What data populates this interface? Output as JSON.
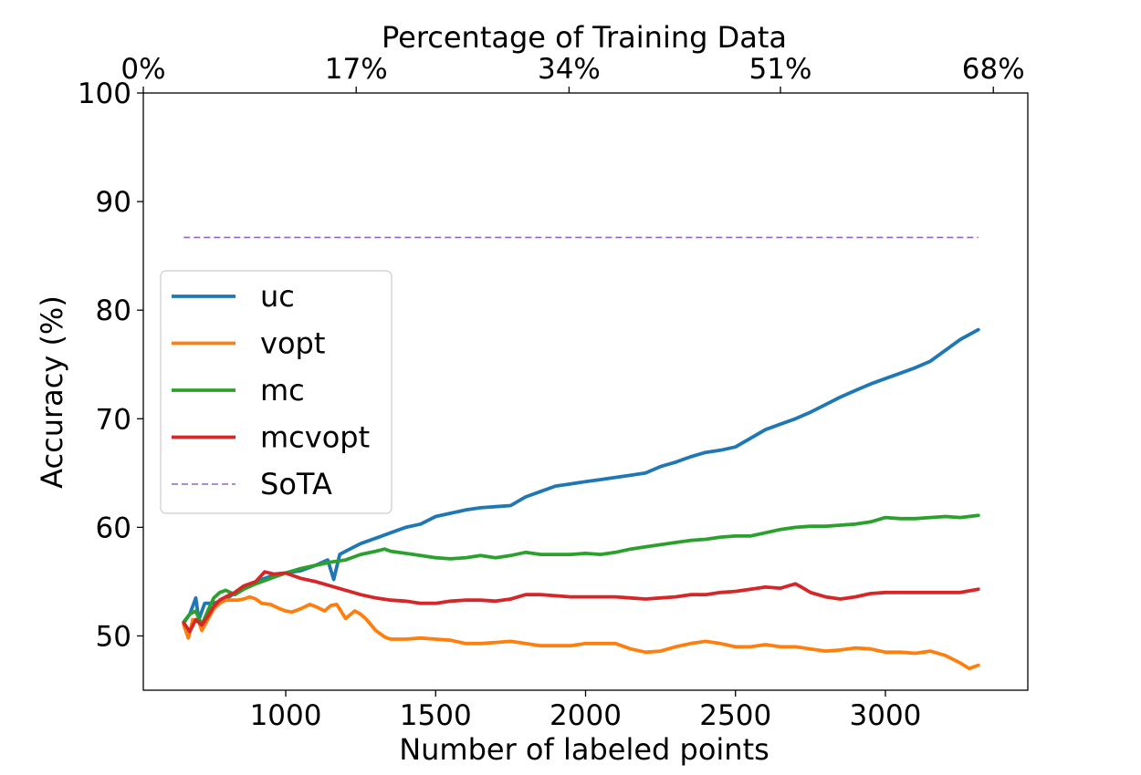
{
  "chart_data": {
    "type": "line",
    "title": "",
    "xlabel": "Number of labeled points",
    "ylabel": "Accuracy (%)",
    "top_xlabel": "Percentage of Training Data",
    "xlim": [
      525,
      3475
    ],
    "ylim": [
      45,
      100
    ],
    "x_ticks": [
      1000,
      1500,
      2000,
      2500,
      3000
    ],
    "y_ticks": [
      50,
      60,
      70,
      80,
      90,
      100
    ],
    "top_ticks": [
      {
        "x": 525,
        "label": "0%"
      },
      {
        "x": 1235,
        "label": "17%"
      },
      {
        "x": 1945,
        "label": "34%"
      },
      {
        "x": 2650,
        "label": "51%"
      },
      {
        "x": 3360,
        "label": "68%"
      }
    ],
    "grid": false,
    "legend": {
      "position": "center-left",
      "entries": [
        "uc",
        "vopt",
        "mc",
        "mcvopt",
        "SoTA"
      ]
    },
    "series": [
      {
        "name": "uc",
        "color": "#1f77b4",
        "style": "solid",
        "points": [
          [
            660,
            51.2
          ],
          [
            680,
            52.0
          ],
          [
            700,
            53.5
          ],
          [
            710,
            51.5
          ],
          [
            730,
            53.0
          ],
          [
            760,
            53.0
          ],
          [
            800,
            53.4
          ],
          [
            850,
            54.3
          ],
          [
            900,
            55.0
          ],
          [
            950,
            55.5
          ],
          [
            1000,
            55.8
          ],
          [
            1050,
            56.0
          ],
          [
            1100,
            56.5
          ],
          [
            1140,
            57.0
          ],
          [
            1160,
            55.2
          ],
          [
            1180,
            57.5
          ],
          [
            1200,
            57.8
          ],
          [
            1250,
            58.5
          ],
          [
            1300,
            59.0
          ],
          [
            1350,
            59.5
          ],
          [
            1400,
            60.0
          ],
          [
            1450,
            60.3
          ],
          [
            1500,
            61.0
          ],
          [
            1550,
            61.3
          ],
          [
            1600,
            61.6
          ],
          [
            1650,
            61.8
          ],
          [
            1700,
            61.9
          ],
          [
            1750,
            62.0
          ],
          [
            1800,
            62.8
          ],
          [
            1850,
            63.3
          ],
          [
            1900,
            63.8
          ],
          [
            1950,
            64.0
          ],
          [
            2000,
            64.2
          ],
          [
            2050,
            64.4
          ],
          [
            2100,
            64.6
          ],
          [
            2150,
            64.8
          ],
          [
            2200,
            65.0
          ],
          [
            2250,
            65.6
          ],
          [
            2300,
            66.0
          ],
          [
            2350,
            66.5
          ],
          [
            2400,
            66.9
          ],
          [
            2450,
            67.1
          ],
          [
            2500,
            67.4
          ],
          [
            2550,
            68.2
          ],
          [
            2600,
            69.0
          ],
          [
            2650,
            69.5
          ],
          [
            2700,
            70.0
          ],
          [
            2750,
            70.6
          ],
          [
            2800,
            71.3
          ],
          [
            2850,
            72.0
          ],
          [
            2900,
            72.6
          ],
          [
            2950,
            73.2
          ],
          [
            3000,
            73.7
          ],
          [
            3050,
            74.2
          ],
          [
            3100,
            74.7
          ],
          [
            3150,
            75.3
          ],
          [
            3200,
            76.3
          ],
          [
            3250,
            77.3
          ],
          [
            3310,
            78.2
          ]
        ]
      },
      {
        "name": "vopt",
        "color": "#ff7f0e",
        "style": "solid",
        "points": [
          [
            660,
            51.0
          ],
          [
            675,
            49.8
          ],
          [
            690,
            51.5
          ],
          [
            710,
            51.3
          ],
          [
            720,
            50.5
          ],
          [
            740,
            51.5
          ],
          [
            760,
            52.5
          ],
          [
            780,
            53.0
          ],
          [
            800,
            53.3
          ],
          [
            820,
            53.3
          ],
          [
            840,
            53.3
          ],
          [
            860,
            53.4
          ],
          [
            880,
            53.6
          ],
          [
            900,
            53.4
          ],
          [
            920,
            53.0
          ],
          [
            950,
            52.9
          ],
          [
            980,
            52.5
          ],
          [
            1000,
            52.3
          ],
          [
            1020,
            52.2
          ],
          [
            1050,
            52.5
          ],
          [
            1080,
            52.9
          ],
          [
            1100,
            52.7
          ],
          [
            1130,
            52.3
          ],
          [
            1150,
            52.8
          ],
          [
            1170,
            52.9
          ],
          [
            1200,
            51.6
          ],
          [
            1230,
            52.3
          ],
          [
            1250,
            52.0
          ],
          [
            1270,
            51.5
          ],
          [
            1300,
            50.5
          ],
          [
            1330,
            49.9
          ],
          [
            1350,
            49.7
          ],
          [
            1400,
            49.7
          ],
          [
            1450,
            49.8
          ],
          [
            1500,
            49.7
          ],
          [
            1550,
            49.6
          ],
          [
            1600,
            49.3
          ],
          [
            1650,
            49.3
          ],
          [
            1700,
            49.4
          ],
          [
            1750,
            49.5
          ],
          [
            1800,
            49.3
          ],
          [
            1850,
            49.1
          ],
          [
            1900,
            49.1
          ],
          [
            1950,
            49.1
          ],
          [
            2000,
            49.3
          ],
          [
            2050,
            49.3
          ],
          [
            2100,
            49.3
          ],
          [
            2150,
            48.8
          ],
          [
            2200,
            48.5
          ],
          [
            2250,
            48.6
          ],
          [
            2300,
            49.0
          ],
          [
            2350,
            49.3
          ],
          [
            2400,
            49.5
          ],
          [
            2450,
            49.3
          ],
          [
            2500,
            49.0
          ],
          [
            2550,
            49.0
          ],
          [
            2600,
            49.2
          ],
          [
            2650,
            49.0
          ],
          [
            2700,
            49.0
          ],
          [
            2750,
            48.8
          ],
          [
            2800,
            48.6
          ],
          [
            2850,
            48.7
          ],
          [
            2900,
            48.9
          ],
          [
            2950,
            48.8
          ],
          [
            3000,
            48.5
          ],
          [
            3050,
            48.5
          ],
          [
            3100,
            48.4
          ],
          [
            3150,
            48.6
          ],
          [
            3200,
            48.2
          ],
          [
            3250,
            47.5
          ],
          [
            3280,
            47.0
          ],
          [
            3310,
            47.3
          ]
        ]
      },
      {
        "name": "mc",
        "color": "#2ca02c",
        "style": "solid",
        "points": [
          [
            660,
            51.3
          ],
          [
            680,
            52.0
          ],
          [
            700,
            52.3
          ],
          [
            720,
            51.0
          ],
          [
            740,
            52.3
          ],
          [
            760,
            53.5
          ],
          [
            780,
            54.0
          ],
          [
            800,
            54.2
          ],
          [
            830,
            53.8
          ],
          [
            860,
            54.3
          ],
          [
            900,
            54.8
          ],
          [
            950,
            55.3
          ],
          [
            1000,
            55.8
          ],
          [
            1050,
            56.2
          ],
          [
            1100,
            56.5
          ],
          [
            1150,
            56.8
          ],
          [
            1200,
            57.0
          ],
          [
            1250,
            57.5
          ],
          [
            1300,
            57.8
          ],
          [
            1330,
            58.0
          ],
          [
            1350,
            57.8
          ],
          [
            1400,
            57.6
          ],
          [
            1450,
            57.4
          ],
          [
            1500,
            57.2
          ],
          [
            1550,
            57.1
          ],
          [
            1600,
            57.2
          ],
          [
            1650,
            57.4
          ],
          [
            1700,
            57.2
          ],
          [
            1750,
            57.4
          ],
          [
            1800,
            57.7
          ],
          [
            1850,
            57.5
          ],
          [
            1900,
            57.5
          ],
          [
            1950,
            57.5
          ],
          [
            2000,
            57.6
          ],
          [
            2050,
            57.5
          ],
          [
            2100,
            57.7
          ],
          [
            2150,
            58.0
          ],
          [
            2200,
            58.2
          ],
          [
            2250,
            58.4
          ],
          [
            2300,
            58.6
          ],
          [
            2350,
            58.8
          ],
          [
            2400,
            58.9
          ],
          [
            2450,
            59.1
          ],
          [
            2500,
            59.2
          ],
          [
            2550,
            59.2
          ],
          [
            2600,
            59.5
          ],
          [
            2650,
            59.8
          ],
          [
            2700,
            60.0
          ],
          [
            2750,
            60.1
          ],
          [
            2800,
            60.1
          ],
          [
            2850,
            60.2
          ],
          [
            2900,
            60.3
          ],
          [
            2950,
            60.5
          ],
          [
            3000,
            60.9
          ],
          [
            3050,
            60.8
          ],
          [
            3100,
            60.8
          ],
          [
            3150,
            60.9
          ],
          [
            3200,
            61.0
          ],
          [
            3250,
            60.9
          ],
          [
            3310,
            61.1
          ]
        ]
      },
      {
        "name": "mcvopt",
        "color": "#d62728",
        "style": "solid",
        "points": [
          [
            660,
            51.2
          ],
          [
            680,
            50.4
          ],
          [
            700,
            51.5
          ],
          [
            720,
            51.0
          ],
          [
            740,
            51.8
          ],
          [
            760,
            52.7
          ],
          [
            780,
            53.3
          ],
          [
            800,
            53.6
          ],
          [
            830,
            54.0
          ],
          [
            860,
            54.6
          ],
          [
            900,
            55.0
          ],
          [
            930,
            55.9
          ],
          [
            960,
            55.7
          ],
          [
            1000,
            55.8
          ],
          [
            1050,
            55.3
          ],
          [
            1100,
            55.0
          ],
          [
            1150,
            54.6
          ],
          [
            1200,
            54.2
          ],
          [
            1250,
            53.8
          ],
          [
            1300,
            53.5
          ],
          [
            1350,
            53.3
          ],
          [
            1400,
            53.2
          ],
          [
            1450,
            53.0
          ],
          [
            1500,
            53.0
          ],
          [
            1550,
            53.2
          ],
          [
            1600,
            53.3
          ],
          [
            1650,
            53.3
          ],
          [
            1700,
            53.2
          ],
          [
            1750,
            53.4
          ],
          [
            1800,
            53.8
          ],
          [
            1850,
            53.8
          ],
          [
            1900,
            53.7
          ],
          [
            1950,
            53.6
          ],
          [
            2000,
            53.6
          ],
          [
            2050,
            53.6
          ],
          [
            2100,
            53.6
          ],
          [
            2150,
            53.5
          ],
          [
            2200,
            53.4
          ],
          [
            2250,
            53.5
          ],
          [
            2300,
            53.6
          ],
          [
            2350,
            53.8
          ],
          [
            2400,
            53.8
          ],
          [
            2450,
            54.0
          ],
          [
            2500,
            54.1
          ],
          [
            2550,
            54.3
          ],
          [
            2600,
            54.5
          ],
          [
            2650,
            54.4
          ],
          [
            2700,
            54.8
          ],
          [
            2720,
            54.5
          ],
          [
            2750,
            54.0
          ],
          [
            2800,
            53.6
          ],
          [
            2850,
            53.4
          ],
          [
            2900,
            53.6
          ],
          [
            2950,
            53.9
          ],
          [
            3000,
            54.0
          ],
          [
            3050,
            54.0
          ],
          [
            3100,
            54.0
          ],
          [
            3150,
            54.0
          ],
          [
            3200,
            54.0
          ],
          [
            3250,
            54.0
          ],
          [
            3310,
            54.3
          ]
        ]
      },
      {
        "name": "SoTA",
        "color": "#9467bd",
        "style": "dashed",
        "points": [
          [
            660,
            86.7
          ],
          [
            3310,
            86.7
          ]
        ]
      }
    ]
  }
}
